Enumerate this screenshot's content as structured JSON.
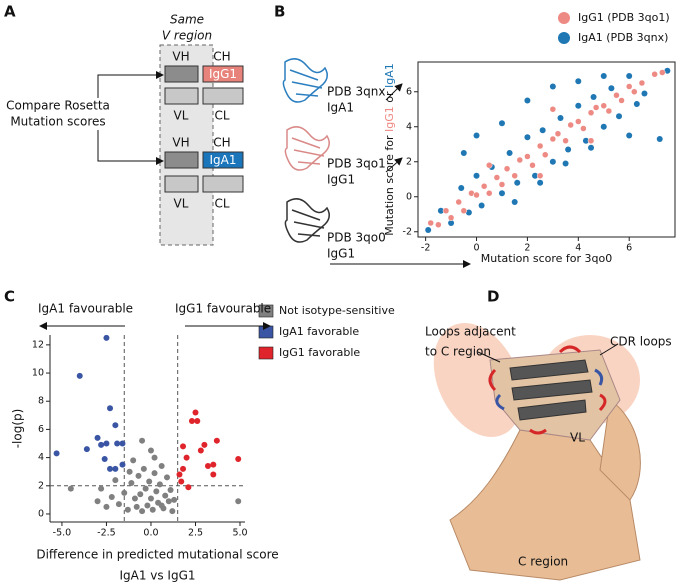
{
  "panel_labels": [
    "A",
    "B",
    "C",
    "D"
  ],
  "panel_a": {
    "heading": [
      "Same",
      "V region"
    ],
    "compare": [
      "Compare Rosetta",
      "Mutation scores"
    ],
    "top": {
      "vh": "VH",
      "ch": "CH",
      "isotype": "IgG1",
      "vl": "VL",
      "cl": "CL"
    },
    "bottom": {
      "vh": "VH",
      "ch": "CH",
      "isotype": "IgA1",
      "vl": "VL",
      "cl": "CL"
    }
  },
  "panel_b_structures": [
    {
      "name": "PDB 3qnx",
      "isotype": "IgA1"
    },
    {
      "name": "PDB 3qo1",
      "isotype": "IgG1"
    },
    {
      "name": "PDB 3qo0",
      "isotype": "IgG1"
    }
  ],
  "chart_data": [
    {
      "type": "scatter",
      "xlabel": "Mutation score for 3qo0",
      "ylabel": [
        "Mutation score for ",
        "IgG1",
        " or ",
        "IgA1"
      ],
      "xlim": [
        -2.3,
        7.8
      ],
      "ylim": [
        -2.3,
        7.7
      ],
      "xticks": [
        -2,
        0,
        2,
        4,
        6
      ],
      "yticks": [
        -2,
        0,
        2,
        4,
        6
      ],
      "legend": "upper right",
      "series": [
        {
          "name": "IgG1 (PDB 3qo1)",
          "color": "#ee8a84",
          "x": [
            -1.8,
            -1.5,
            -1.2,
            -1,
            -0.7,
            -0.5,
            -0.2,
            0,
            0.3,
            0.5,
            0.8,
            1,
            1.2,
            1.5,
            1.7,
            2,
            2.2,
            2.5,
            2.7,
            3,
            3.2,
            3.5,
            3.7,
            4,
            4.2,
            4.5,
            4.7,
            5,
            5.2,
            5.5,
            5.7,
            6,
            6.2,
            6.5,
            7,
            7.3,
            0.5,
            2.5,
            4.5,
            3
          ],
          "values": [
            -1.5,
            -1.6,
            -0.8,
            -1.2,
            -0.3,
            -0.8,
            0.2,
            0.1,
            0.6,
            0.2,
            1.1,
            0.7,
            1.6,
            1.2,
            2.1,
            2.3,
            1.8,
            2.9,
            2.4,
            3.3,
            3.6,
            3.2,
            4.1,
            4.3,
            3.9,
            4.8,
            5.1,
            5.2,
            4.9,
            5.8,
            5.5,
            6.3,
            6,
            6.5,
            7,
            7.1,
            1.8,
            1.2,
            3.2,
            5
          ]
        },
        {
          "name": "IgA1 (PDB 3qnx)",
          "color": "#1f77b4",
          "x": [
            -1.9,
            -1.4,
            -1,
            -0.6,
            -0.3,
            0,
            0.2,
            0.6,
            1,
            1.3,
            1.6,
            2,
            2.3,
            2.6,
            3,
            3.3,
            3.6,
            4,
            4.3,
            4.6,
            5,
            5.3,
            5.6,
            6,
            6.3,
            6.6,
            7.2,
            7.5,
            0,
            1,
            2,
            3,
            4,
            5,
            6,
            -0.5,
            1.5,
            2.5,
            3.5,
            4.5
          ],
          "values": [
            -1.9,
            -0.8,
            -1.5,
            0.5,
            -0.9,
            1.2,
            -0.5,
            1.7,
            0.2,
            2.5,
            0.8,
            3.4,
            1.2,
            3.8,
            2,
            4.5,
            2.7,
            5.2,
            3.2,
            5.7,
            4,
            6.2,
            4.6,
            6.9,
            5.3,
            5.9,
            3.3,
            7.2,
            3.5,
            4.2,
            5.5,
            6.3,
            6.6,
            6.9,
            3.5,
            2.5,
            -0.3,
            0.8,
            1.9,
            2.8
          ]
        }
      ]
    },
    {
      "type": "scatter",
      "annotations": [
        "IgA1 favourable",
        "IgG1 favourable"
      ],
      "xlabel": [
        "Difference in predicted mutational score",
        "IgA1 vs IgG1"
      ],
      "ylabel": "-log(p)",
      "xlim": [
        -5.67,
        5.28
      ],
      "ylim": [
        -0.57,
        12.7
      ],
      "xticks": [
        {
          "value": -5,
          "label": "-5.0"
        },
        {
          "value": -2.5,
          "label": "-2.5"
        },
        {
          "value": 0,
          "label": "0.0"
        },
        {
          "value": 2.5,
          "label": "2.5"
        },
        {
          "value": 5,
          "label": "5.0"
        }
      ],
      "yticks": [
        0,
        2,
        4,
        6,
        8,
        10,
        12
      ],
      "vlines": [
        -1.5,
        1.5
      ],
      "hline": 2,
      "legend": "upper right",
      "legend_marker": "square",
      "series": [
        {
          "name": "Not isotype-sensitive",
          "color": "#808080",
          "x": [
            -3,
            -2.8,
            -2.5,
            -2.2,
            -2,
            -1.8,
            -1.5,
            -1.3,
            -1.1,
            -1,
            -0.9,
            -0.8,
            -0.7,
            -0.6,
            -0.5,
            -0.4,
            -0.3,
            -0.2,
            -0.1,
            0,
            0,
            0.1,
            0.2,
            0.3,
            0.4,
            0.5,
            0.6,
            0.7,
            0.8,
            0.9,
            1,
            1.1,
            1.2,
            1.3,
            -0.5,
            0.2,
            -1.2,
            0.6,
            4.9,
            -4.5
          ],
          "values": [
            0.9,
            1.8,
            0.5,
            1.2,
            2.4,
            0.7,
            1.5,
            0.3,
            2.2,
            3.8,
            1.1,
            0.5,
            2.7,
            1.4,
            0.2,
            3.2,
            1.8,
            0.6,
            2.3,
            1.1,
            4.5,
            0.3,
            2.9,
            1.6,
            0.8,
            2.1,
            3.4,
            0.4,
            1.3,
            2.6,
            0.9,
            1.7,
            0.2,
            1,
            5.2,
            4,
            3,
            0.6,
            0.9,
            1.8
          ]
        },
        {
          "name": "IgA1 favorable",
          "color": "#3a55a4",
          "x": [
            -5.3,
            -4,
            -3.6,
            -2.5,
            -2.3,
            -2,
            -1.9,
            -2.5,
            -1.6,
            -1.6,
            -2.3,
            -2.6,
            -2.8,
            -3,
            -2
          ],
          "values": [
            4.3,
            9.8,
            4.6,
            12.5,
            7.5,
            6.3,
            5,
            5,
            5,
            3.5,
            3.2,
            3.9,
            4.9,
            5.4,
            3.2
          ]
        },
        {
          "name": "IgG1 favorable",
          "color": "#e0242b",
          "x": [
            1.6,
            1.8,
            2,
            2.3,
            2.5,
            2.6,
            2.8,
            3,
            3.2,
            3.5,
            3.5,
            3.7,
            4.9,
            1.8,
            2.1,
            1.7
          ],
          "values": [
            2.8,
            4.8,
            4,
            6.6,
            7.2,
            6.6,
            4.5,
            4.9,
            3.4,
            2.8,
            3.5,
            5.2,
            3.9,
            3.2,
            1.9,
            2.3
          ]
        }
      ]
    }
  ],
  "panel_d": {
    "loops_adjacent": [
      "Loops adjacent",
      "to C region"
    ],
    "cdr": "CDR loops",
    "vl": "VL",
    "c_region": "C region"
  }
}
